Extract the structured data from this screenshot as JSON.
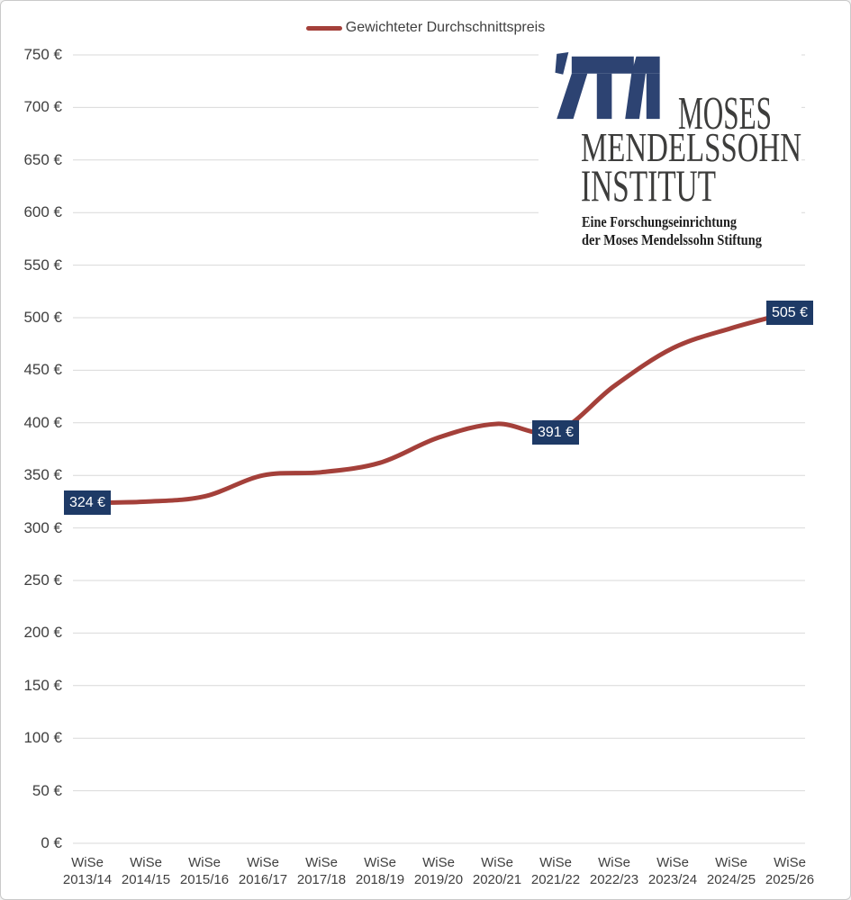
{
  "page": {
    "background": "#ffffff",
    "border_color": "#c9c9c9"
  },
  "legend": {
    "label": "Gewichteter Durchschnittspreis",
    "line_color": "#a4403a"
  },
  "logo": {
    "mark_color": "#2d4372",
    "title_line1": "MOSES",
    "title_line2": "MENDELSSOHN",
    "title_line3": "INSTITUT",
    "subtitle_line1": "Eine Forschungseinrichtung",
    "subtitle_line2": "der Moses Mendelssohn Stiftung"
  },
  "chart_data": {
    "type": "line",
    "series_name": "Gewichteter Durchschnittspreis",
    "unit": "€",
    "categories": [
      "WiSe 2013/14",
      "WiSe 2014/15",
      "WiSe 2015/16",
      "WiSe 2016/17",
      "WiSe 2017/18",
      "WiSe 2018/19",
      "WiSe 2019/20",
      "WiSe 2020/21",
      "WiSe 2021/22",
      "WiSe 2022/23",
      "WiSe 2023/24",
      "WiSe 2024/25",
      "WiSe 2025/26"
    ],
    "values": [
      324,
      325,
      330,
      350,
      353,
      362,
      386,
      399,
      391,
      435,
      471,
      490,
      505
    ],
    "ylim": [
      0,
      750
    ],
    "ytick_step": 50,
    "ytick_labels": [
      "0 €",
      "50 €",
      "100 €",
      "150 €",
      "200 €",
      "250 €",
      "300 €",
      "350 €",
      "400 €",
      "450 €",
      "500 €",
      "550 €",
      "600 €",
      "650 €",
      "700 €",
      "750 €"
    ],
    "grid": true,
    "gridline_color": "#d9d9d9",
    "line_color": "#a4403a",
    "legend_position": "top-center",
    "annotations": [
      {
        "index": 0,
        "text": "324 €"
      },
      {
        "index": 8,
        "text": "391 €"
      },
      {
        "index": 12,
        "text": "505 €"
      }
    ],
    "annotation_bg": "#1e3a66",
    "annotation_text_color": "#ffffff"
  }
}
